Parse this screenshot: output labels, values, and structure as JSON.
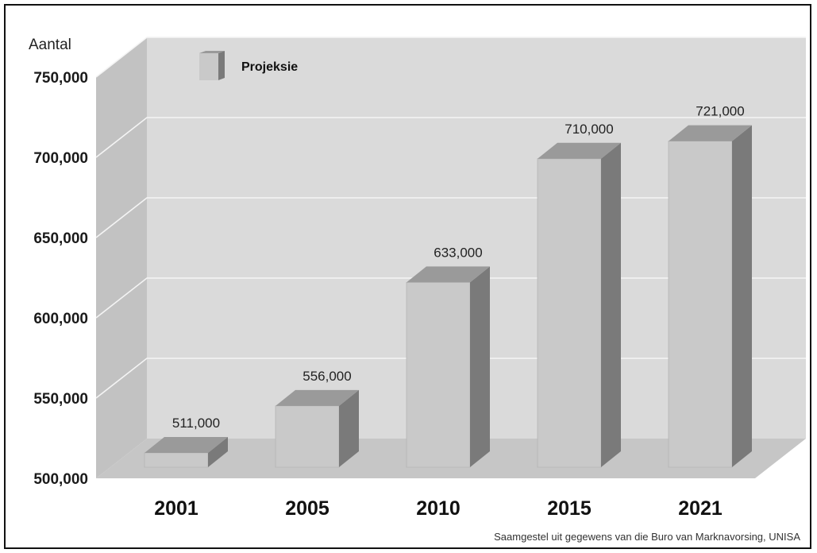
{
  "chart_data": {
    "type": "bar",
    "ylabel": "Aantal",
    "categories": [
      "2001",
      "2005",
      "2010",
      "2015",
      "2021"
    ],
    "series": [
      {
        "name": "Projeksie",
        "values": [
          511000,
          556000,
          633000,
          710000,
          721000
        ]
      }
    ],
    "data_labels": [
      "511,000",
      "556,000",
      "633,000",
      "710,000",
      "721,000"
    ],
    "ylim": [
      500000,
      750000
    ],
    "y_ticks": [
      500000,
      550000,
      600000,
      650000,
      700000,
      750000
    ],
    "y_tick_labels": [
      "500,000",
      "550,000",
      "600,000",
      "650,000",
      "700,000",
      "750,000"
    ],
    "grid": true,
    "style": "3d",
    "legend": {
      "position": "top-left"
    },
    "colors": {
      "bar_front": "#c9c9c9",
      "bar_side": "#7a7a7a",
      "bar_top": "#9a9a9a",
      "back_wall": "#dadada",
      "side_wall": "#c2c2c2",
      "floor": "#c6c6c6",
      "gridline": "#f4f4f4"
    }
  },
  "source": "Saamgestel uit gegewens van die Buro van Marknavorsing, UNISA"
}
